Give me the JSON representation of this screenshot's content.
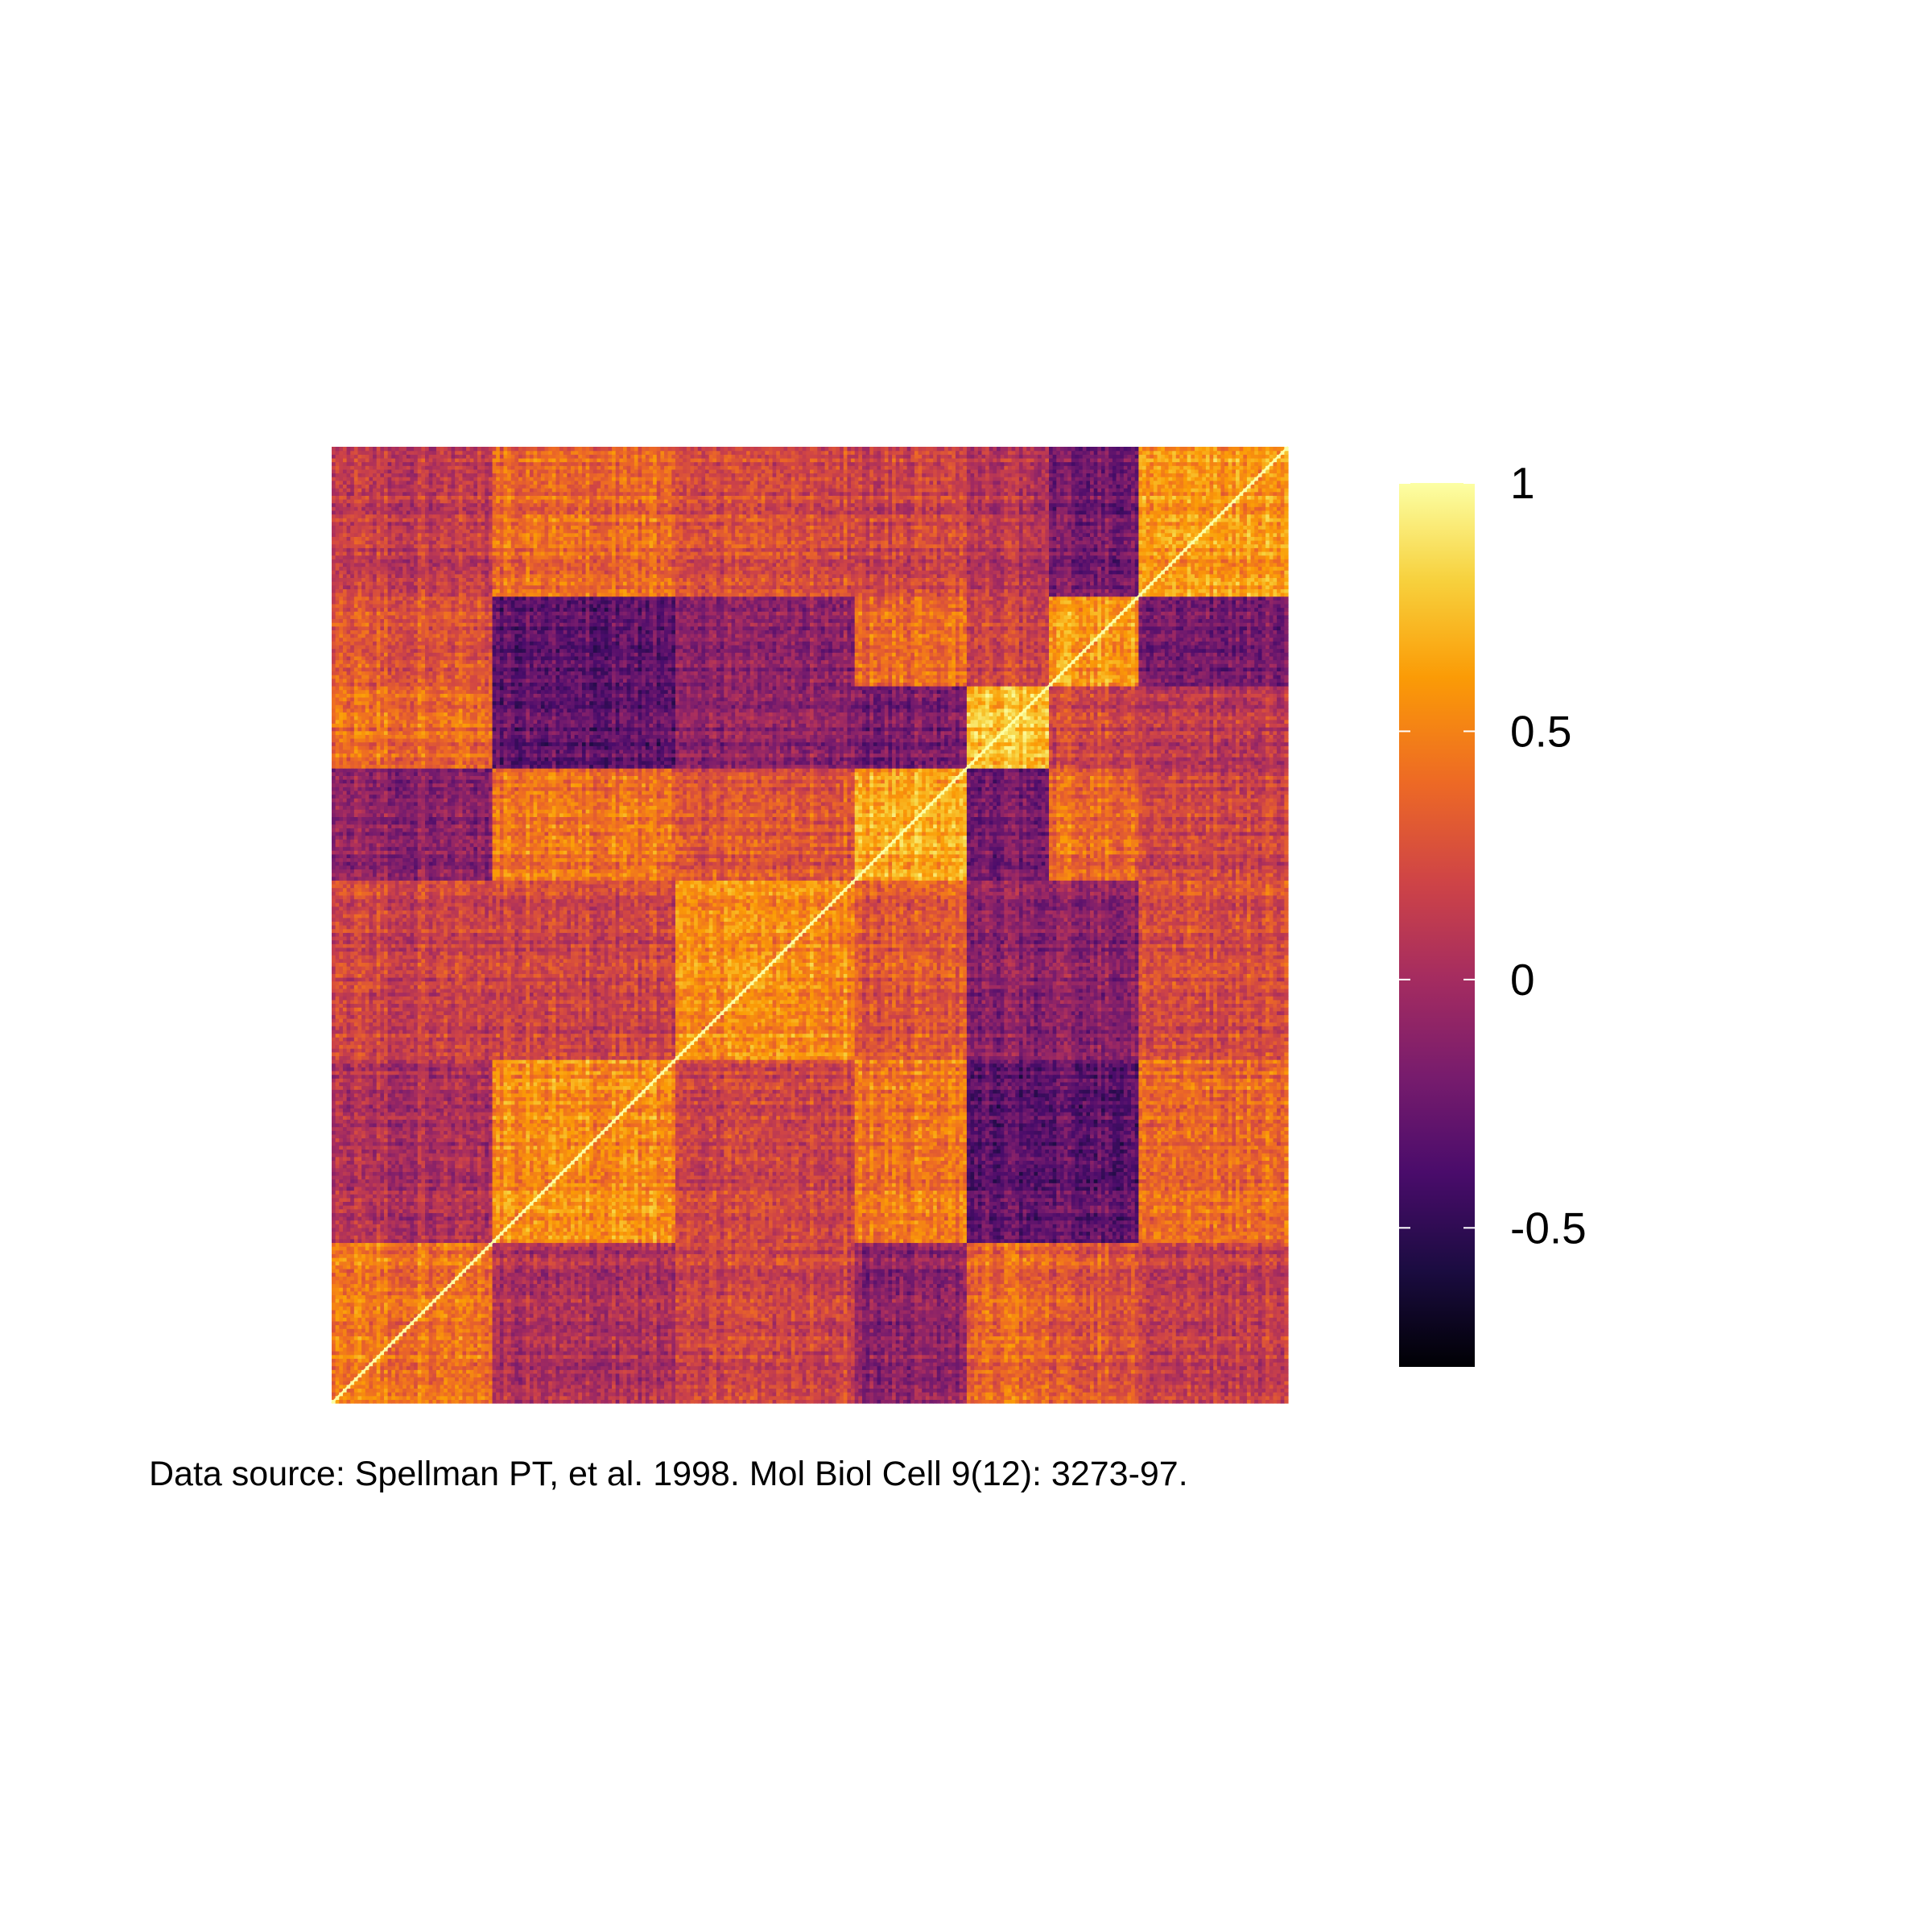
{
  "chart_data": {
    "type": "heatmap",
    "title": "",
    "xlabel": "",
    "ylabel": "",
    "colormap": "inferno",
    "colormap_stops": [
      "#000004",
      "#1b0c41",
      "#4a0c6b",
      "#781c6d",
      "#a52c60",
      "#cf4446",
      "#ed6925",
      "#fb9b06",
      "#f7d13d",
      "#fcffa4"
    ],
    "value_range": [
      -0.78,
      1
    ],
    "n_genes_approx": 256,
    "block_boundaries_fraction": [
      0,
      0.167,
      0.36,
      0.548,
      0.665,
      0.75,
      0.845,
      1
    ],
    "block_means": [
      [
        0.45,
        0.05,
        0.2,
        -0.1,
        0.4,
        0.3,
        0.15
      ],
      [
        0.05,
        0.55,
        0.2,
        0.45,
        -0.3,
        -0.3,
        0.4
      ],
      [
        0.2,
        0.2,
        0.55,
        0.3,
        -0.1,
        -0.1,
        0.25
      ],
      [
        -0.1,
        0.45,
        0.3,
        0.65,
        -0.2,
        0.4,
        0.2
      ],
      [
        0.4,
        -0.3,
        -0.1,
        -0.2,
        0.75,
        0.2,
        0.1
      ],
      [
        0.3,
        -0.3,
        -0.1,
        0.4,
        0.2,
        0.6,
        -0.2
      ],
      [
        0.15,
        0.4,
        0.25,
        0.2,
        0.1,
        -0.2,
        0.6
      ]
    ],
    "diagonal_value": 1,
    "colorbar": {
      "ticks": [
        1,
        0.5,
        0,
        -0.5
      ],
      "tick_labels": [
        "1",
        "0.5",
        "0",
        "-0.5"
      ]
    },
    "caption": "Data source: Spellman PT, et al. 1998. Mol Biol Cell 9(12): 3273-97."
  }
}
